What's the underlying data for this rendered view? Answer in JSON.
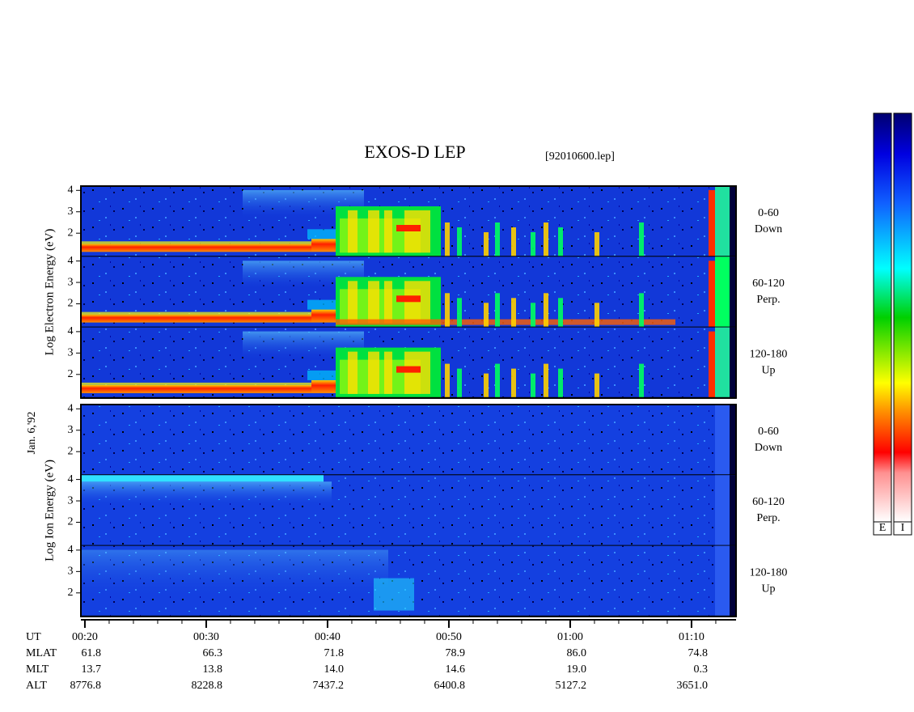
{
  "chart_data": {
    "type": "spectrogram",
    "title": "EXOS-D LEP",
    "subtitle": "[92010600.lep]",
    "date_label": "Jan. 6,'92",
    "panels": [
      {
        "label": "Log Electron Energy (eV)",
        "kind": "electron",
        "subpanels": [
          {
            "angle": "0-60",
            "direction": "Down"
          },
          {
            "angle": "60-120",
            "direction": "Perp."
          },
          {
            "angle": "120-180",
            "direction": "Up"
          }
        ]
      },
      {
        "label": "Log Ion Energy (eV)",
        "kind": "ion",
        "subpanels": [
          {
            "angle": "0-60",
            "direction": "Down"
          },
          {
            "angle": "60-120",
            "direction": "Perp."
          },
          {
            "angle": "120-180",
            "direction": "Up"
          }
        ]
      }
    ],
    "ylim": [
      0.9,
      4.2
    ],
    "yticks": [
      2,
      3,
      4
    ],
    "xlim": [
      19.67,
      73.67
    ],
    "xticks": [
      {
        "value": 20,
        "label": "00:20"
      },
      {
        "value": 30,
        "label": "00:30"
      },
      {
        "value": 40,
        "label": "00:40"
      },
      {
        "value": 50,
        "label": "00:50"
      },
      {
        "value": 60,
        "label": "01:00"
      },
      {
        "value": 70,
        "label": "01:10"
      }
    ],
    "xminorticks": [
      22,
      24,
      26,
      28,
      32,
      34,
      36,
      38,
      42,
      44,
      46,
      48,
      52,
      54,
      56,
      58,
      62,
      64,
      66,
      68,
      72
    ],
    "x_label": "UT",
    "ephemeris": [
      {
        "name": "MLAT",
        "values": [
          "61.8",
          "66.3",
          "71.8",
          "78.9",
          "86.0",
          "74.8"
        ]
      },
      {
        "name": "MLT",
        "values": [
          "13.7",
          "13.8",
          "14.0",
          "14.6",
          "19.0",
          "0.3"
        ]
      },
      {
        "name": "ALT",
        "values": [
          "8776.8",
          "8228.8",
          "7437.2",
          "6400.8",
          "5127.2",
          "3651.0"
        ]
      }
    ],
    "colorbars": [
      "E",
      "I"
    ]
  }
}
